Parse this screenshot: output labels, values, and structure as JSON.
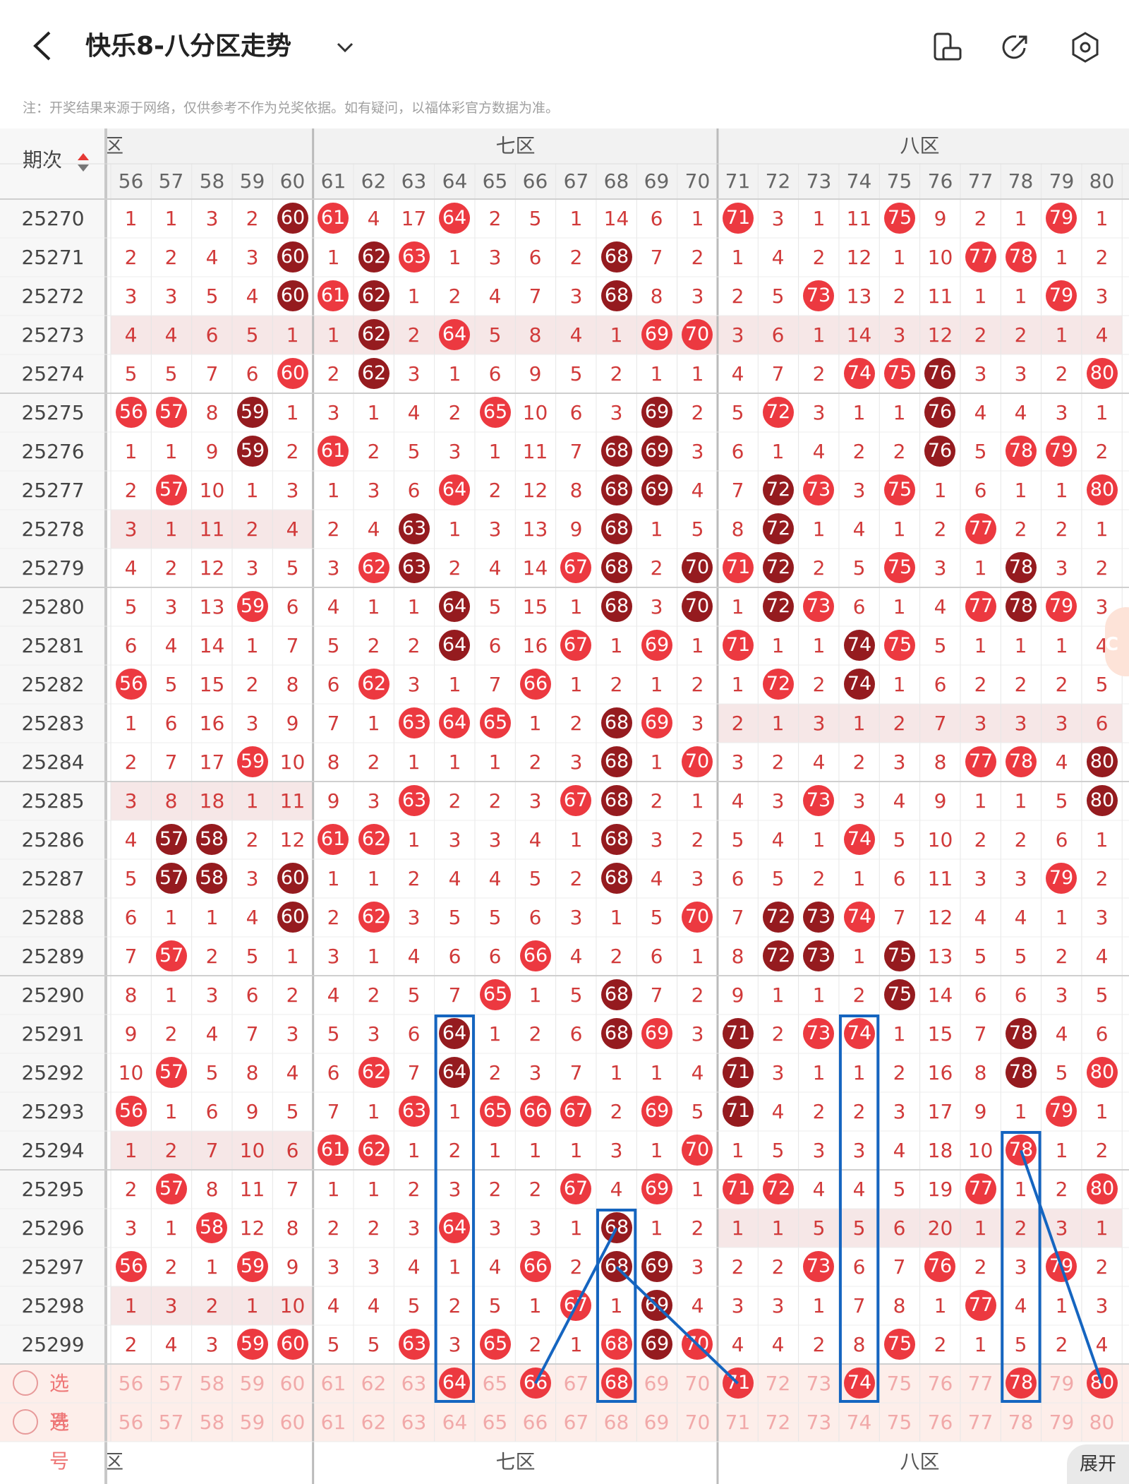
{
  "header": {
    "title": "快乐8-八分区走势",
    "back_icon": "chevron-left-icon",
    "dropdown_icon": "chevron-down-icon",
    "icons": [
      "mobile-landscape-icon",
      "share-arrow-icon",
      "settings-hexagon-icon"
    ]
  },
  "note": "注：开奖结果来源于网络，仅供参考不作为兑奖依据。如有疑问，以福体彩官方数据为准。",
  "table": {
    "period_header": "期次",
    "sort_icon": "sort-up-down-icon",
    "zones": [
      {
        "label": "六区",
        "visible_label": "区"
      },
      {
        "label": "七区"
      },
      {
        "label": "八区"
      }
    ],
    "columns": [
      "56",
      "57",
      "58",
      "59",
      "60",
      "61",
      "62",
      "63",
      "64",
      "65",
      "66",
      "67",
      "68",
      "69",
      "70",
      "71",
      "72",
      "73",
      "74",
      "75",
      "76",
      "77",
      "78",
      "79",
      "80"
    ],
    "rows": [
      {
        "period": "25270",
        "cells": [
          "1",
          "1",
          "3",
          "2",
          "60",
          "61",
          "4",
          "17",
          "64",
          "2",
          "5",
          "1",
          "14",
          "6",
          "1",
          "71",
          "3",
          "1",
          "11",
          "75",
          "9",
          "2",
          "1",
          "79",
          "1"
        ]
      },
      {
        "period": "25271",
        "cells": [
          "2",
          "2",
          "4",
          "3",
          "60",
          "1",
          "62",
          "63",
          "1",
          "3",
          "6",
          "2",
          "68",
          "7",
          "2",
          "1",
          "4",
          "2",
          "12",
          "1",
          "10",
          "77",
          "78",
          "1",
          "2"
        ]
      },
      {
        "period": "25272",
        "cells": [
          "3",
          "3",
          "5",
          "4",
          "60",
          "61",
          "62",
          "1",
          "2",
          "4",
          "7",
          "3",
          "68",
          "8",
          "3",
          "2",
          "5",
          "73",
          "13",
          "2",
          "11",
          "1",
          "1",
          "79",
          "3"
        ]
      },
      {
        "period": "25273",
        "cells": [
          "4",
          "4",
          "6",
          "5",
          "1",
          "1",
          "62",
          "2",
          "64",
          "5",
          "8",
          "4",
          "1",
          "69",
          "70",
          "3",
          "6",
          "1",
          "14",
          "3",
          "12",
          "2",
          "2",
          "1",
          "4"
        ]
      },
      {
        "period": "25274",
        "cells": [
          "5",
          "5",
          "7",
          "6",
          "60",
          "2",
          "62",
          "3",
          "1",
          "6",
          "9",
          "5",
          "2",
          "1",
          "1",
          "4",
          "7",
          "2",
          "74",
          "75",
          "76",
          "3",
          "3",
          "2",
          "80"
        ]
      },
      {
        "period": "25275",
        "cells": [
          "56",
          "57",
          "8",
          "59",
          "1",
          "3",
          "1",
          "4",
          "2",
          "65",
          "10",
          "6",
          "3",
          "69",
          "2",
          "5",
          "72",
          "3",
          "1",
          "1",
          "76",
          "4",
          "4",
          "3",
          "1"
        ]
      },
      {
        "period": "25276",
        "cells": [
          "1",
          "1",
          "9",
          "59",
          "2",
          "61",
          "2",
          "5",
          "3",
          "1",
          "11",
          "7",
          "68",
          "69",
          "3",
          "6",
          "1",
          "4",
          "2",
          "2",
          "76",
          "5",
          "78",
          "79",
          "2"
        ]
      },
      {
        "period": "25277",
        "cells": [
          "2",
          "57",
          "10",
          "1",
          "3",
          "1",
          "3",
          "6",
          "64",
          "2",
          "12",
          "8",
          "68",
          "69",
          "4",
          "7",
          "72",
          "73",
          "3",
          "75",
          "1",
          "6",
          "1",
          "1",
          "80"
        ]
      },
      {
        "period": "25278",
        "cells": [
          "3",
          "1",
          "11",
          "2",
          "4",
          "2",
          "4",
          "63",
          "1",
          "3",
          "13",
          "9",
          "68",
          "1",
          "5",
          "8",
          "72",
          "1",
          "4",
          "1",
          "2",
          "77",
          "2",
          "2",
          "1"
        ]
      },
      {
        "period": "25279",
        "cells": [
          "4",
          "2",
          "12",
          "3",
          "5",
          "3",
          "62",
          "63",
          "2",
          "4",
          "14",
          "67",
          "68",
          "2",
          "70",
          "71",
          "72",
          "2",
          "5",
          "75",
          "3",
          "1",
          "78",
          "3",
          "2"
        ]
      },
      {
        "period": "25280",
        "cells": [
          "5",
          "3",
          "13",
          "59",
          "6",
          "4",
          "1",
          "1",
          "64",
          "5",
          "15",
          "1",
          "68",
          "3",
          "70",
          "1",
          "72",
          "73",
          "6",
          "1",
          "4",
          "77",
          "78",
          "79",
          "3"
        ]
      },
      {
        "period": "25281",
        "cells": [
          "6",
          "4",
          "14",
          "1",
          "7",
          "5",
          "2",
          "2",
          "64",
          "6",
          "16",
          "67",
          "1",
          "69",
          "1",
          "71",
          "1",
          "1",
          "74",
          "75",
          "5",
          "1",
          "1",
          "1",
          "4"
        ]
      },
      {
        "period": "25282",
        "cells": [
          "56",
          "5",
          "15",
          "2",
          "8",
          "6",
          "62",
          "3",
          "1",
          "7",
          "66",
          "1",
          "2",
          "1",
          "2",
          "1",
          "72",
          "2",
          "74",
          "1",
          "6",
          "2",
          "2",
          "2",
          "5"
        ]
      },
      {
        "period": "25283",
        "cells": [
          "1",
          "6",
          "16",
          "3",
          "9",
          "7",
          "1",
          "63",
          "64",
          "65",
          "1",
          "2",
          "68",
          "69",
          "3",
          "2",
          "1",
          "3",
          "1",
          "2",
          "7",
          "3",
          "3",
          "3",
          "6"
        ]
      },
      {
        "period": "25284",
        "cells": [
          "2",
          "7",
          "17",
          "59",
          "10",
          "8",
          "2",
          "1",
          "1",
          "1",
          "2",
          "3",
          "68",
          "1",
          "70",
          "3",
          "2",
          "4",
          "2",
          "3",
          "8",
          "77",
          "78",
          "4",
          "80"
        ]
      },
      {
        "period": "25285",
        "cells": [
          "3",
          "8",
          "18",
          "1",
          "11",
          "9",
          "3",
          "63",
          "2",
          "2",
          "3",
          "67",
          "68",
          "2",
          "1",
          "4",
          "3",
          "73",
          "3",
          "4",
          "9",
          "1",
          "1",
          "5",
          "80"
        ]
      },
      {
        "period": "25286",
        "cells": [
          "4",
          "57",
          "58",
          "2",
          "12",
          "61",
          "62",
          "1",
          "3",
          "3",
          "4",
          "1",
          "68",
          "3",
          "2",
          "5",
          "4",
          "1",
          "74",
          "5",
          "10",
          "2",
          "2",
          "6",
          "1"
        ]
      },
      {
        "period": "25287",
        "cells": [
          "5",
          "57",
          "58",
          "3",
          "60",
          "1",
          "1",
          "2",
          "4",
          "4",
          "5",
          "2",
          "68",
          "4",
          "3",
          "6",
          "5",
          "2",
          "1",
          "6",
          "11",
          "3",
          "3",
          "79",
          "2"
        ]
      },
      {
        "period": "25288",
        "cells": [
          "6",
          "1",
          "1",
          "4",
          "60",
          "2",
          "62",
          "3",
          "5",
          "5",
          "6",
          "3",
          "1",
          "5",
          "70",
          "7",
          "72",
          "73",
          "74",
          "7",
          "12",
          "4",
          "4",
          "1",
          "3"
        ]
      },
      {
        "period": "25289",
        "cells": [
          "7",
          "57",
          "2",
          "5",
          "1",
          "3",
          "1",
          "4",
          "6",
          "6",
          "66",
          "4",
          "2",
          "6",
          "1",
          "8",
          "72",
          "73",
          "1",
          "75",
          "13",
          "5",
          "5",
          "2",
          "4"
        ]
      },
      {
        "period": "25290",
        "cells": [
          "8",
          "1",
          "3",
          "6",
          "2",
          "4",
          "2",
          "5",
          "7",
          "65",
          "1",
          "5",
          "68",
          "7",
          "2",
          "9",
          "1",
          "1",
          "2",
          "75",
          "14",
          "6",
          "6",
          "3",
          "5"
        ]
      },
      {
        "period": "25291",
        "cells": [
          "9",
          "2",
          "4",
          "7",
          "3",
          "5",
          "3",
          "6",
          "64",
          "1",
          "2",
          "6",
          "68",
          "69",
          "3",
          "71",
          "2",
          "73",
          "74",
          "1",
          "15",
          "7",
          "78",
          "4",
          "6"
        ]
      },
      {
        "period": "25292",
        "cells": [
          "10",
          "57",
          "5",
          "8",
          "4",
          "6",
          "62",
          "7",
          "64",
          "2",
          "3",
          "7",
          "1",
          "1",
          "4",
          "71",
          "3",
          "1",
          "1",
          "2",
          "16",
          "8",
          "78",
          "5",
          "80"
        ]
      },
      {
        "period": "25293",
        "cells": [
          "56",
          "1",
          "6",
          "9",
          "5",
          "7",
          "1",
          "63",
          "1",
          "65",
          "66",
          "67",
          "2",
          "69",
          "5",
          "71",
          "4",
          "2",
          "2",
          "3",
          "17",
          "9",
          "1",
          "79",
          "1"
        ]
      },
      {
        "period": "25294",
        "cells": [
          "1",
          "2",
          "7",
          "10",
          "6",
          "61",
          "62",
          "1",
          "2",
          "1",
          "1",
          "1",
          "3",
          "1",
          "70",
          "1",
          "5",
          "3",
          "3",
          "4",
          "18",
          "10",
          "78",
          "1",
          "2"
        ]
      },
      {
        "period": "25295",
        "cells": [
          "2",
          "57",
          "8",
          "11",
          "7",
          "1",
          "1",
          "2",
          "3",
          "2",
          "2",
          "67",
          "4",
          "69",
          "1",
          "71",
          "72",
          "4",
          "4",
          "5",
          "19",
          "77",
          "1",
          "2",
          "80"
        ]
      },
      {
        "period": "25296",
        "cells": [
          "3",
          "1",
          "58",
          "12",
          "8",
          "2",
          "2",
          "3",
          "64",
          "3",
          "3",
          "1",
          "68",
          "1",
          "2",
          "1",
          "1",
          "5",
          "5",
          "6",
          "20",
          "1",
          "2",
          "3",
          "1"
        ]
      },
      {
        "period": "25297",
        "cells": [
          "56",
          "2",
          "1",
          "59",
          "9",
          "3",
          "3",
          "4",
          "1",
          "4",
          "66",
          "2",
          "68",
          "69",
          "3",
          "2",
          "2",
          "73",
          "6",
          "7",
          "76",
          "2",
          "3",
          "79",
          "2"
        ]
      },
      {
        "period": "25298",
        "cells": [
          "1",
          "3",
          "2",
          "1",
          "10",
          "4",
          "4",
          "5",
          "2",
          "5",
          "1",
          "67",
          "1",
          "69",
          "4",
          "3",
          "3",
          "1",
          "7",
          "8",
          "1",
          "77",
          "4",
          "1",
          "3"
        ]
      },
      {
        "period": "25299",
        "cells": [
          "2",
          "4",
          "3",
          "59",
          "60",
          "5",
          "5",
          "63",
          "3",
          "65",
          "2",
          "1",
          "68",
          "69",
          "70",
          "4",
          "4",
          "2",
          "8",
          "75",
          "2",
          "1",
          "5",
          "2",
          "4"
        ]
      }
    ],
    "selection_rows": [
      {
        "label": "选号",
        "picked": [
          "64",
          "66",
          "68",
          "71",
          "74",
          "78",
          "80"
        ]
      },
      {
        "label": "选号",
        "picked": []
      }
    ],
    "selection_numbers": [
      "56",
      "57",
      "58",
      "59",
      "60",
      "61",
      "62",
      "63",
      "64",
      "65",
      "66",
      "67",
      "68",
      "69",
      "70",
      "71",
      "72",
      "73",
      "74",
      "75",
      "76",
      "77",
      "78",
      "79",
      "80"
    ]
  },
  "expand_label": "展开",
  "colors": {
    "hit": "#ec3940",
    "hit_dark": "#951b1f",
    "miss_text": "#d13a3a",
    "highlight": "#1565c0",
    "shade": "#f6e7e7"
  }
}
